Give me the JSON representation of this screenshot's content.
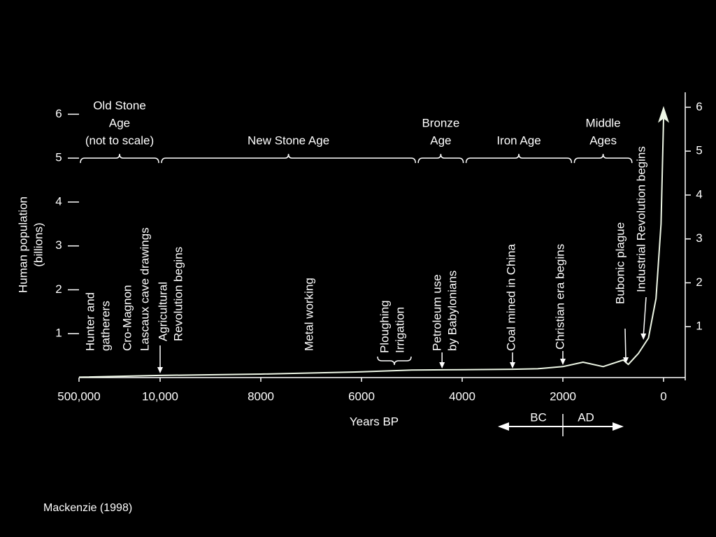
{
  "chart_data": {
    "type": "line",
    "y_label": [
      "Human population",
      "(billions)"
    ],
    "x_label": "Years BP",
    "xlim": [
      500000,
      0
    ],
    "xticks": [
      {
        "value": 500000,
        "label": "500,000"
      },
      {
        "value": 10000,
        "label": "10,000"
      },
      8000,
      6000,
      4000,
      2000,
      0
    ],
    "ylim": [
      0,
      6.5
    ],
    "yticks": [
      1,
      2,
      3,
      4,
      5,
      6
    ],
    "y2lim": [
      0,
      6.5
    ],
    "y2ticks": [
      1,
      2,
      3,
      4,
      5,
      6
    ],
    "color": "#eef7e6",
    "x": [
      500000,
      10000,
      8000,
      6000,
      5000,
      4000,
      3000,
      2500,
      2000,
      1600,
      1200,
      800,
      700,
      500,
      300,
      150,
      50,
      0
    ],
    "values": [
      0.01,
      0.05,
      0.08,
      0.13,
      0.17,
      0.18,
      0.19,
      0.2,
      0.25,
      0.35,
      0.25,
      0.4,
      0.3,
      0.55,
      0.9,
      1.8,
      3.5,
      5.9
    ],
    "eras": [
      {
        "label": [
          "Old Stone",
          "Age",
          "(not to scale)"
        ],
        "start": 500000,
        "end": 10000
      },
      {
        "label": [
          "New Stone Age"
        ],
        "start": 10000,
        "end": 4900
      },
      {
        "label": [
          "Bronze",
          "Age"
        ],
        "start": 4900,
        "end": 3950
      },
      {
        "label": [
          "Iron Age"
        ],
        "start": 3950,
        "end": 1800
      },
      {
        "label": [
          "Middle",
          "Ages"
        ],
        "start": 1800,
        "end": 600
      }
    ],
    "annotations": [
      {
        "text": [
          "Hunter and",
          "gatherers"
        ]
      },
      {
        "text": [
          "Cro-Magnon"
        ]
      },
      {
        "text": [
          "Lascaux cave drawings"
        ]
      },
      {
        "text": [
          "Agricultural",
          "Revolution begins"
        ],
        "x": 10000
      },
      {
        "text": [
          "Metal working"
        ]
      },
      {
        "text": [
          "Ploughing",
          "Irrigation"
        ]
      },
      {
        "text": [
          "Petroleum use",
          "by Babylonians"
        ],
        "x": 4400
      },
      {
        "text": [
          "Coal mined in China"
        ],
        "x": 3000
      },
      {
        "text": [
          "Christian era begins"
        ],
        "x": 2000
      },
      {
        "text": [
          "Bubonic plague"
        ],
        "x": 750
      },
      {
        "text": [
          "Industrial Revolution begins"
        ],
        "x": 400
      }
    ],
    "era_divider": 2000,
    "bc_ad": [
      "BC",
      "AD"
    ],
    "source": "Mackenzie (1998)"
  }
}
